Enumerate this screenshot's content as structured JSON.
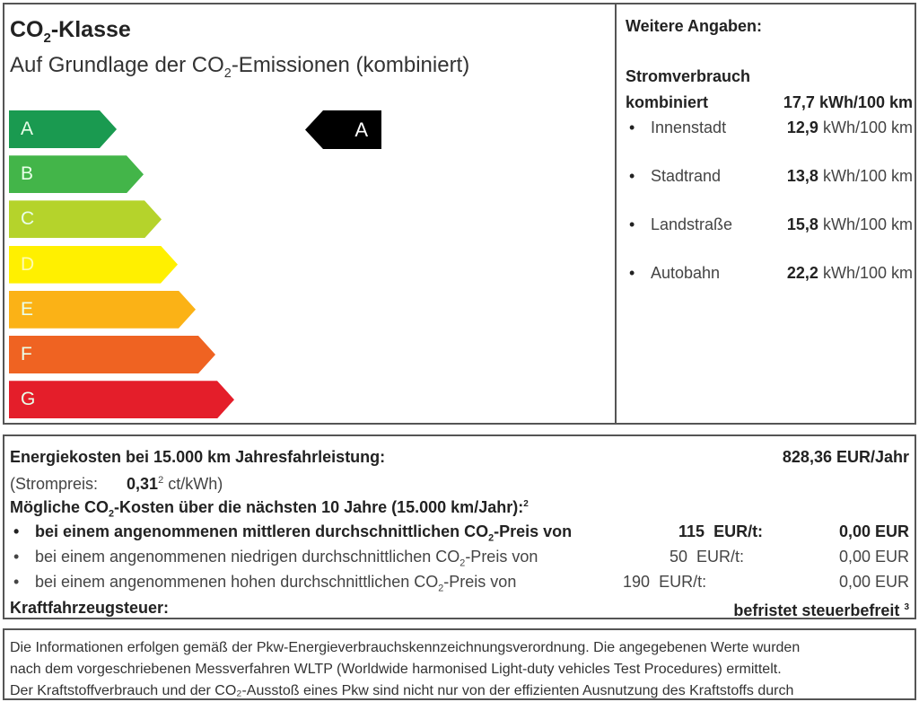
{
  "label": {
    "title_pre": "CO",
    "title_sub": "2",
    "title_post": "-Klasse",
    "subtitle_pre": "Auf Grundlage der CO",
    "subtitle_sub": "2",
    "subtitle_post": "-Emissionen (kombiniert)",
    "classes": [
      {
        "letter": "A",
        "color": "#1a9a50"
      },
      {
        "letter": "B",
        "color": "#43b549"
      },
      {
        "letter": "C",
        "color": "#b5d32b"
      },
      {
        "letter": "D",
        "color": "#fff000"
      },
      {
        "letter": "E",
        "color": "#fbb216"
      },
      {
        "letter": "F",
        "color": "#ef6322"
      },
      {
        "letter": "G",
        "color": "#e41e2a"
      }
    ],
    "current_class": "A"
  },
  "weitere": {
    "heading": "Weitere Angaben:",
    "section": "Stromverbrauch",
    "kombiniert_label": "kombiniert",
    "kombiniert_value": "17,7 kWh/100 km",
    "items": [
      {
        "label": "Innenstadt",
        "value": "12,9",
        "unit": "kWh/100 km"
      },
      {
        "label": "Stadtrand",
        "value": "13,8",
        "unit": "kWh/100 km"
      },
      {
        "label": "Landstraße",
        "value": "15,8",
        "unit": "kWh/100 km"
      },
      {
        "label": "Autobahn",
        "value": "22,2",
        "unit": "kWh/100 km"
      }
    ]
  },
  "costs": {
    "energy_label": "Energiekosten bei 15.000 km Jahresfahrleistung:",
    "energy_value": "828,36 EUR/Jahr",
    "price_label": "(Strompreis:",
    "price_value": "0,31",
    "price_sup": "2",
    "price_unit": "ct/kWh)",
    "co2_pre": "Mögliche CO",
    "co2_sub": "2",
    "co2_post": "-Kosten über die nächsten 10 Jahre (15.000 km/Jahr):",
    "co2_sup": "2",
    "scenarios": [
      {
        "pre": "bei einem angenommenen mittleren durchschnittlichen CO",
        "post": "-Preis von",
        "price": "115",
        "unit": "EUR/t:",
        "value": "0,00 EUR"
      },
      {
        "pre": "bei einem angenommenen niedrigen durchschnittlichen CO",
        "post": "-Preis von",
        "price": "50",
        "unit": "EUR/t:",
        "value": "0,00 EUR"
      },
      {
        "pre": "bei einem angenommenen hohen durchschnittlichen CO",
        "post": "-Preis von",
        "price": "190",
        "unit": "EUR/t:",
        "value": "0,00 EUR"
      }
    ],
    "sub2": "2",
    "tax_label": "Kraftfahrzeugsteuer:",
    "tax_value": "befristet steuerbefreit",
    "tax_sup": "3"
  },
  "footer": {
    "line1": "Die Informationen erfolgen gemäß der Pkw-Energieverbrauchskennzeichnungsverordnung. Die angegebenen Werte wurden",
    "line2": "nach dem vorgeschriebenen Messverfahren WLTP (Worldwide harmonised Light-duty vehicles Test Procedures) ermittelt.",
    "line3": "Der Kraftstoffverbrauch und der CO₂-Ausstoß eines Pkw sind nicht nur von der effizienten Ausnutzung des Kraftstoffs durch"
  }
}
